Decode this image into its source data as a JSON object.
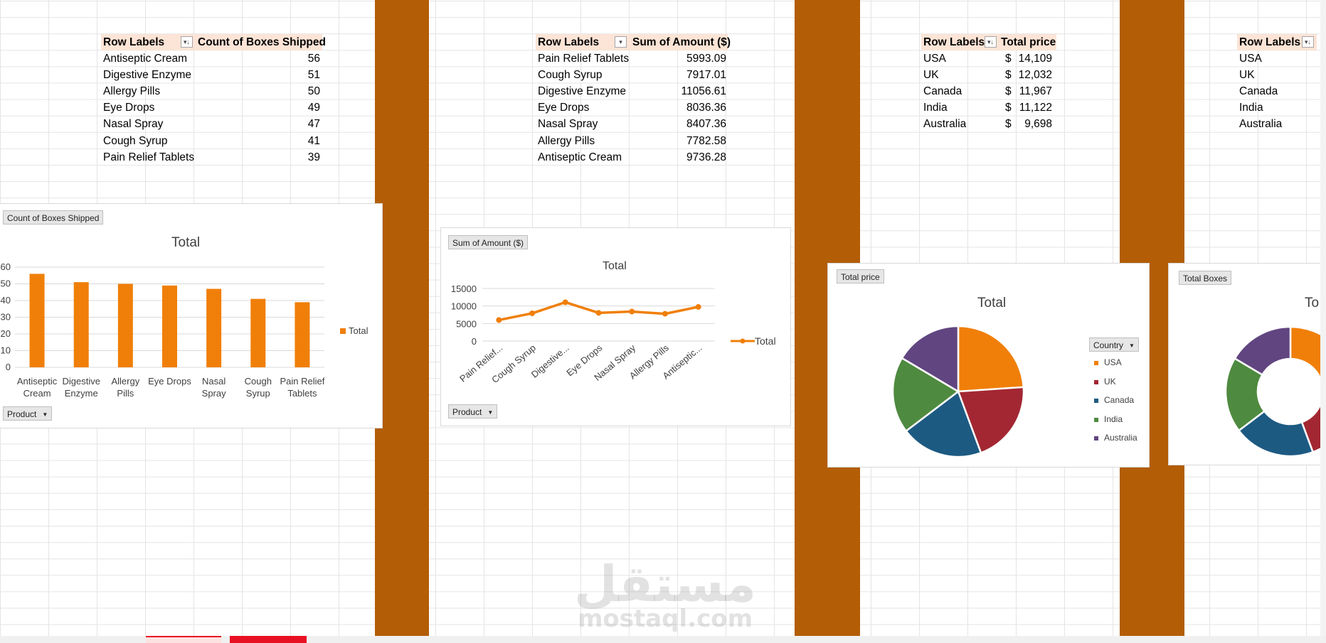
{
  "colors": {
    "divider": "#b35d07",
    "orange": "#f07f09",
    "header_fill": "#fce4d6",
    "usa": "#f07f09",
    "uk": "#a32732",
    "canada": "#1d5a82",
    "india": "#4e8a3f",
    "australia": "#614580"
  },
  "pivot1": {
    "header": {
      "row_labels": "Row Labels",
      "value": "Count of Boxes Shipped"
    },
    "filter_icon": "sort-filter-icon",
    "rows": [
      {
        "label": "Antiseptic Cream",
        "value": "56"
      },
      {
        "label": "Digestive Enzyme",
        "value": "51"
      },
      {
        "label": "Allergy Pills",
        "value": "50"
      },
      {
        "label": "Eye Drops",
        "value": "49"
      },
      {
        "label": "Nasal Spray",
        "value": "47"
      },
      {
        "label": "Cough Syrup",
        "value": "41"
      },
      {
        "label": "Pain Relief Tablets",
        "value": "39"
      }
    ]
  },
  "pivot2": {
    "header": {
      "row_labels": "Row Labels",
      "value": "Sum of Amount ($)"
    },
    "filter_icon": "dropdown-icon",
    "rows": [
      {
        "label": "Pain Relief Tablets",
        "value": "5993.09"
      },
      {
        "label": "Cough Syrup",
        "value": "7917.01"
      },
      {
        "label": "Digestive Enzyme",
        "value": "11056.61"
      },
      {
        "label": "Eye Drops",
        "value": "8036.36"
      },
      {
        "label": "Nasal Spray",
        "value": "8407.36"
      },
      {
        "label": "Allergy Pills",
        "value": "7782.58"
      },
      {
        "label": "Antiseptic Cream",
        "value": "9736.28"
      }
    ]
  },
  "pivot3": {
    "header": {
      "row_labels": "Row Labels",
      "value": "Total price"
    },
    "filter_icon": "sort-filter-icon",
    "currency": "$",
    "rows": [
      {
        "label": "USA",
        "value": "14,109"
      },
      {
        "label": "UK",
        "value": "12,032"
      },
      {
        "label": "Canada",
        "value": "11,967"
      },
      {
        "label": "India",
        "value": "11,122"
      },
      {
        "label": "Australia",
        "value": "9,698"
      }
    ]
  },
  "pivot4": {
    "header": {
      "row_labels": "Row Labels"
    },
    "filter_icon": "sort-filter-icon",
    "rows": [
      {
        "label": "USA"
      },
      {
        "label": "UK"
      },
      {
        "label": "Canada"
      },
      {
        "label": "India"
      },
      {
        "label": "Australia"
      }
    ]
  },
  "chart1": {
    "field_button": "Count of Boxes Shipped",
    "axis_button": "Product",
    "legend": "Total"
  },
  "chart2": {
    "field_button": "Sum of Amount ($)",
    "axis_button": "Product",
    "legend": "Total"
  },
  "chart3": {
    "field_button": "Total price",
    "legend_button": "Country"
  },
  "chart4": {
    "field_button": "Total Boxes",
    "title_partial": "To"
  },
  "chart_data": [
    {
      "type": "bar",
      "title": "Total",
      "categories": [
        "Antiseptic Cream",
        "Digestive Enzyme",
        "Allergy Pills",
        "Eye Drops",
        "Nasal Spray",
        "Cough Syrup",
        "Pain Relief Tablets"
      ],
      "series": [
        {
          "name": "Total",
          "values": [
            56,
            51,
            50,
            49,
            47,
            41,
            39
          ]
        }
      ],
      "ylim": [
        0,
        60
      ],
      "yticks": [
        0,
        10,
        20,
        30,
        40,
        50,
        60
      ],
      "grid": true,
      "legend": "right"
    },
    {
      "type": "line",
      "title": "Total",
      "categories": [
        "Pain Relief...",
        "Cough Syrup",
        "Digestive...",
        "Eye Drops",
        "Nasal Spray",
        "Allergy Pills",
        "Antiseptic..."
      ],
      "series": [
        {
          "name": "Total",
          "values": [
            5993.09,
            7917.01,
            11056.61,
            8036.36,
            8407.36,
            7782.58,
            9736.28
          ]
        }
      ],
      "ylim": [
        0,
        15000
      ],
      "yticks": [
        0,
        5000,
        10000,
        15000
      ],
      "grid": true,
      "legend": "right"
    },
    {
      "type": "pie",
      "title": "Total",
      "labels": [
        "USA",
        "UK",
        "Canada",
        "India",
        "Australia"
      ],
      "values": [
        14109,
        12032,
        11967,
        11122,
        9698
      ],
      "legend": "right"
    },
    {
      "type": "pie",
      "subtype": "doughnut",
      "labels": [
        "USA",
        "UK",
        "Canada",
        "India",
        "Australia"
      ],
      "values": [
        14109,
        12032,
        11967,
        11122,
        9698
      ]
    }
  ],
  "sheet_tabs": [
    "",
    ""
  ],
  "watermark": {
    "arabic": "مستقل",
    "latin": "mostaql.com"
  }
}
